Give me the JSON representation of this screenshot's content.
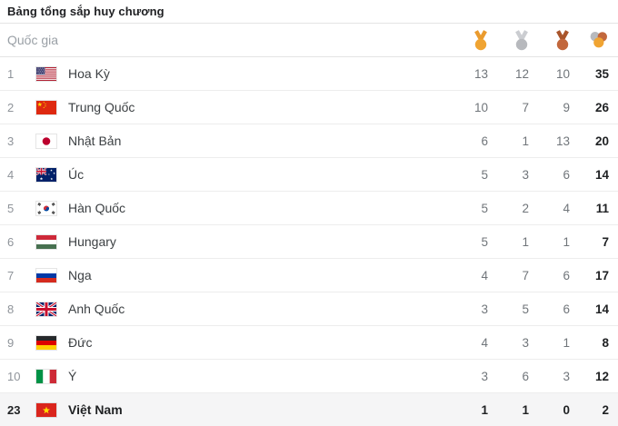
{
  "title": "Bảng tổng sắp huy chương",
  "header": {
    "country_label": "Quốc gia",
    "columns": [
      "gold-medal",
      "silver-medal",
      "bronze-medal",
      "total-medals"
    ]
  },
  "colors": {
    "gold": "#F0A432",
    "gold_ribbon": "#EA9B2E",
    "silver": "#B7B9BD",
    "silver_ribbon": "#CBCDD1",
    "bronze": "#C2673C",
    "bronze_ribbon": "#A9552B",
    "highlight_row_bg": "#F5F5F6"
  },
  "rows": [
    {
      "rank": "1",
      "flag": "us",
      "country": "Hoa Kỳ",
      "gold": 13,
      "silver": 12,
      "bronze": 10,
      "total": 35,
      "highlight": false
    },
    {
      "rank": "2",
      "flag": "cn",
      "country": "Trung Quốc",
      "gold": 10,
      "silver": 7,
      "bronze": 9,
      "total": 26,
      "highlight": false
    },
    {
      "rank": "3",
      "flag": "jp",
      "country": "Nhật Bản",
      "gold": 6,
      "silver": 1,
      "bronze": 13,
      "total": 20,
      "highlight": false
    },
    {
      "rank": "4",
      "flag": "au",
      "country": "Úc",
      "gold": 5,
      "silver": 3,
      "bronze": 6,
      "total": 14,
      "highlight": false
    },
    {
      "rank": "5",
      "flag": "kr",
      "country": "Hàn Quốc",
      "gold": 5,
      "silver": 2,
      "bronze": 4,
      "total": 11,
      "highlight": false
    },
    {
      "rank": "6",
      "flag": "hu",
      "country": "Hungary",
      "gold": 5,
      "silver": 1,
      "bronze": 1,
      "total": 7,
      "highlight": false
    },
    {
      "rank": "7",
      "flag": "ru",
      "country": "Nga",
      "gold": 4,
      "silver": 7,
      "bronze": 6,
      "total": 17,
      "highlight": false
    },
    {
      "rank": "8",
      "flag": "gb",
      "country": "Anh Quốc",
      "gold": 3,
      "silver": 5,
      "bronze": 6,
      "total": 14,
      "highlight": false
    },
    {
      "rank": "9",
      "flag": "de",
      "country": "Đức",
      "gold": 4,
      "silver": 3,
      "bronze": 1,
      "total": 8,
      "highlight": false
    },
    {
      "rank": "10",
      "flag": "it",
      "country": "Ý",
      "gold": 3,
      "silver": 6,
      "bronze": 3,
      "total": 12,
      "highlight": false
    },
    {
      "rank": "23",
      "flag": "vn",
      "country": "Việt Nam",
      "gold": 1,
      "silver": 1,
      "bronze": 0,
      "total": 2,
      "highlight": true
    }
  ]
}
